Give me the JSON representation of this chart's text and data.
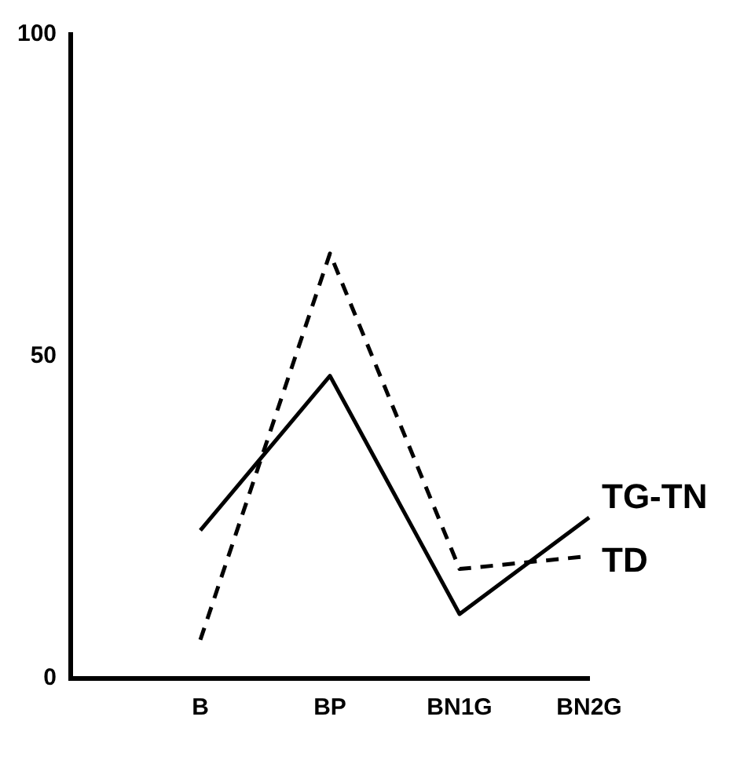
{
  "chart_data": {
    "type": "line",
    "categories": [
      null,
      "B",
      "BP",
      "BN1G",
      "BN2G"
    ],
    "series": [
      {
        "name": "TG-TN",
        "color": "#000000",
        "line_style": "solid",
        "values": [
          null,
          23,
          47,
          10,
          25
        ]
      },
      {
        "name": "TD",
        "color": "#000000",
        "line_style": "dashed",
        "values": [
          null,
          6,
          66,
          17,
          19
        ]
      }
    ],
    "ylim": [
      0,
      100
    ],
    "yticks": [
      0,
      50,
      100
    ],
    "grid": false,
    "legend": false,
    "marker": "none"
  }
}
